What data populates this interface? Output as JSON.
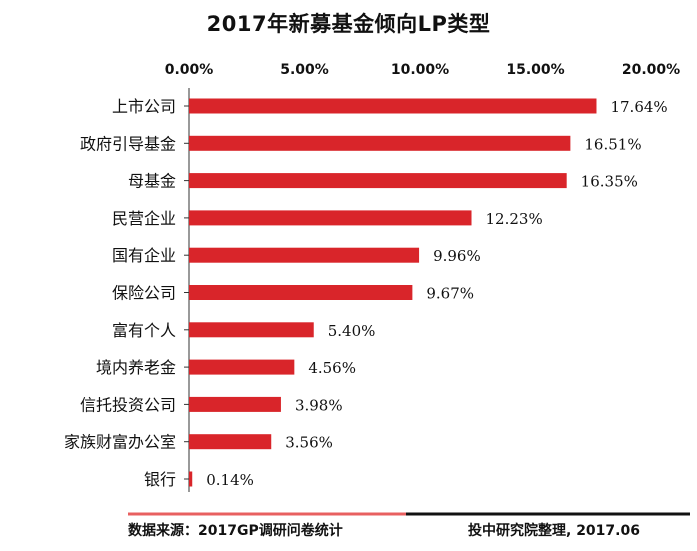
{
  "chart_data": {
    "type": "bar",
    "orientation": "horizontal",
    "title": "2017年新募基金倾向LP类型",
    "categories": [
      "上市公司",
      "政府引导基金",
      "母基金",
      "民营企业",
      "国有企业",
      "保险公司",
      "富有个人",
      "境内养老金",
      "信托投资公司",
      "家族财富办公室",
      "银行"
    ],
    "values": [
      17.64,
      16.51,
      16.35,
      12.23,
      9.96,
      9.67,
      5.4,
      4.56,
      3.98,
      3.56,
      0.14
    ],
    "value_labels": [
      "17.64%",
      "16.51%",
      "16.35%",
      "12.23%",
      "9.96%",
      "9.67%",
      "5.40%",
      "4.56%",
      "3.98%",
      "3.56%",
      "0.14%"
    ],
    "xlim": [
      0,
      20
    ],
    "xticks": [
      "0.00%",
      "5.00%",
      "10.00%",
      "15.00%",
      "20.00%"
    ],
    "x_axis_position": "top",
    "grid": false,
    "bar_color": "#d9252a"
  },
  "footer": {
    "source": "数据来源：2017GP调研问卷统计",
    "credit": "投中研究院整理, 2017.06",
    "line_colors": {
      "left": "#e86060",
      "right": "#111111"
    }
  }
}
